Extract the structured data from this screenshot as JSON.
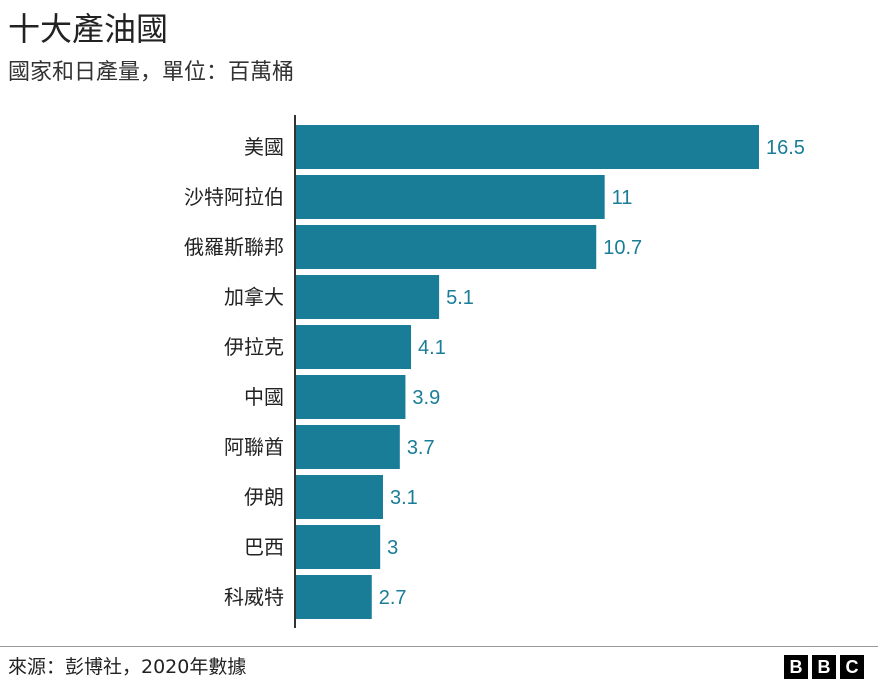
{
  "header": {
    "title": "十大產油國",
    "subtitle": "國家和日產量，單位：百萬桶"
  },
  "footer": {
    "source": "來源：彭博社，2020年數據",
    "logo_letters": [
      "B",
      "B",
      "C"
    ]
  },
  "colors": {
    "bar": "#1a7d98",
    "value_label": "#1a7d98",
    "axis": "#333333"
  },
  "chart_data": {
    "type": "bar",
    "orientation": "horizontal",
    "categories": [
      "美國",
      "沙特阿拉伯",
      "俄羅斯聯邦",
      "加拿大",
      "伊拉克",
      "中國",
      "阿聯酋",
      "伊朗",
      "巴西",
      "科威特"
    ],
    "values": [
      16.5,
      11,
      10.7,
      5.1,
      4.1,
      3.9,
      3.7,
      3.1,
      3,
      2.7
    ],
    "value_labels": [
      "16.5",
      "11",
      "10.7",
      "5.1",
      "4.1",
      "3.9",
      "3.7",
      "3.1",
      "3",
      "2.7"
    ],
    "title": "十大產油國",
    "subtitle": "國家和日產量，單位：百萬桶",
    "xlabel": "",
    "ylabel": "",
    "xlim": [
      0,
      16.5
    ],
    "grid": false,
    "legend": "none"
  }
}
